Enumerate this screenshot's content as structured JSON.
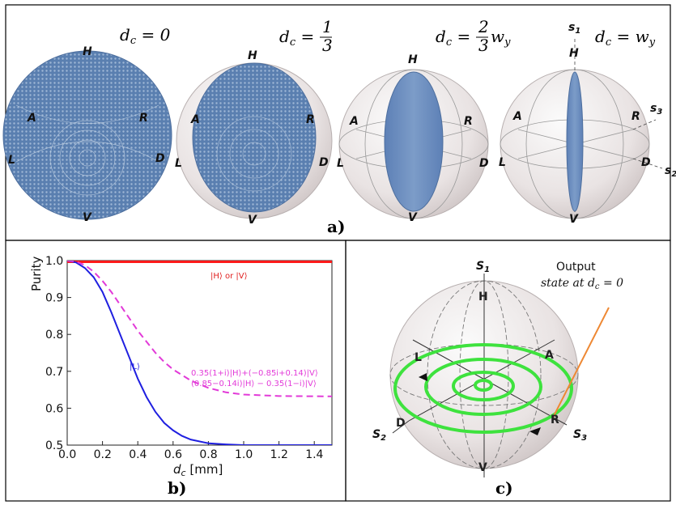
{
  "panel_a": {
    "caption": "a)",
    "titles": [
      "d_c = 0",
      "d_c = 1/3",
      "d_c = 2/3 w_y",
      "d_c = w_y"
    ],
    "poles": {
      "H": "H",
      "V": "V",
      "A": "A",
      "R": "R",
      "L": "L",
      "D": "D"
    },
    "stokes": {
      "s1": "s",
      "s1_sub": "1",
      "s3": "s",
      "s3_sub": "3",
      "s2": "s",
      "s2_sub": "2"
    }
  },
  "panel_b": {
    "caption": "b)",
    "chart_data": {
      "type": "line",
      "xlabel": "d_c [mm]",
      "ylabel": "Purity",
      "xlim": [
        0.0,
        1.5
      ],
      "ylim": [
        0.5,
        1.0
      ],
      "x_ticks": [
        "0.0",
        "0.2",
        "0.4",
        "0.6",
        "0.8",
        "1.0",
        "1.2",
        "1.4"
      ],
      "y_ticks": [
        "0.5",
        "0.6",
        "0.7",
        "0.8",
        "0.9",
        "1.0"
      ],
      "series": [
        {
          "name": "|H⟩ or |V⟩",
          "color": "#ff1a1a",
          "style": "solid-thick",
          "x": [
            0.0,
            1.5
          ],
          "y": [
            1.0,
            1.0
          ]
        },
        {
          "name": "|L⟩",
          "color": "#1f1fe0",
          "style": "solid",
          "x": [
            0.0,
            0.05,
            0.1,
            0.15,
            0.2,
            0.25,
            0.3,
            0.35,
            0.4,
            0.45,
            0.5,
            0.55,
            0.6,
            0.65,
            0.7,
            0.8,
            0.9,
            1.0,
            1.1,
            1.2,
            1.3,
            1.4,
            1.5
          ],
          "y": [
            1.0,
            0.995,
            0.98,
            0.955,
            0.915,
            0.86,
            0.8,
            0.74,
            0.68,
            0.63,
            0.59,
            0.56,
            0.54,
            0.525,
            0.515,
            0.505,
            0.502,
            0.5,
            0.5,
            0.5,
            0.5,
            0.5,
            0.5
          ]
        },
        {
          "name": "0.35(1+i)|H⟩+(−0.85i+0.14)|V⟩ / (0.85−0.14i)|H⟩ − 0.35(1−i)|V⟩",
          "color": "#e23ad8",
          "style": "dashed",
          "x": [
            0.0,
            0.05,
            0.1,
            0.15,
            0.2,
            0.25,
            0.3,
            0.35,
            0.4,
            0.45,
            0.5,
            0.55,
            0.6,
            0.7,
            0.8,
            0.9,
            1.0,
            1.2,
            1.5
          ],
          "y": [
            1.0,
            0.997,
            0.988,
            0.97,
            0.945,
            0.915,
            0.88,
            0.845,
            0.81,
            0.78,
            0.75,
            0.725,
            0.705,
            0.675,
            0.655,
            0.643,
            0.637,
            0.633,
            0.632
          ]
        }
      ],
      "annotations": {
        "hv": "|H⟩ or |V⟩",
        "l": "|L⟩",
        "m1": "0.35(1+i)|H⟩+(−0.85i+0.14)|V⟩",
        "m2": "(0.85−0.14i)|H⟩ − 0.35(1−i)|V⟩"
      }
    }
  },
  "panel_c": {
    "caption": "c)",
    "output_line1": "Output",
    "output_line2": "state at d_c = 0",
    "poles": {
      "H": "H",
      "V": "V",
      "A": "A",
      "R": "R",
      "L": "L",
      "D": "D"
    },
    "stokes": {
      "s1": "S",
      "s1_sub": "1",
      "s2": "S",
      "s2_sub": "2",
      "s3": "S",
      "s3_sub": "3"
    },
    "colors": {
      "spiral": "#3ee23e",
      "pointer": "#ee8833"
    }
  }
}
